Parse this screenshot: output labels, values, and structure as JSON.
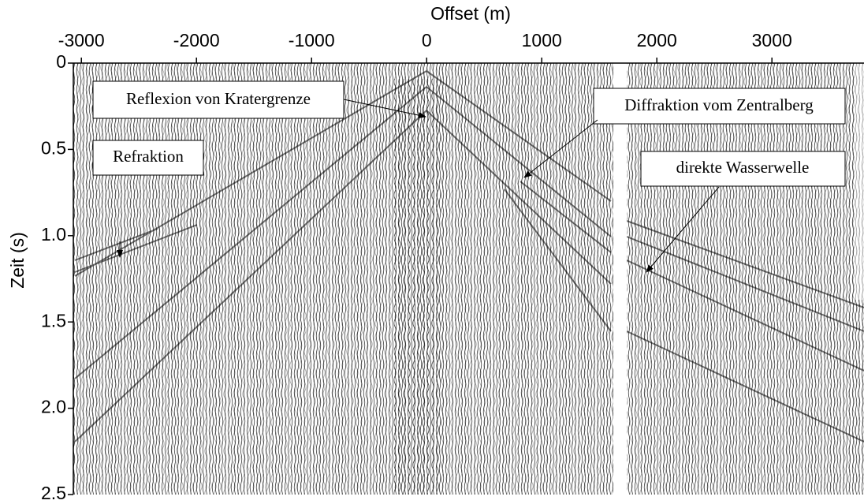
{
  "chart_data": {
    "type": "seismic",
    "xlabel": "Offset (m)",
    "ylabel": "Zeit (s)",
    "xlim": [
      -3070,
      3800
    ],
    "xticks": [
      -3000,
      -2000,
      -1000,
      0,
      1000,
      2000,
      3000
    ],
    "ylim": [
      2.5,
      0
    ],
    "yticks": [
      0,
      0.5,
      {
        "value": 1,
        "label": "1.0"
      },
      1.5,
      {
        "value": 2,
        "label": "2.0"
      },
      2.5
    ],
    "annotations": [
      {
        "text": "Reflexion von Kratergrenze"
      },
      {
        "text": "Refraktion"
      },
      {
        "text": "Diffraktion vom Zentralberg"
      },
      {
        "text": "direkte Wasserwelle"
      }
    ]
  }
}
